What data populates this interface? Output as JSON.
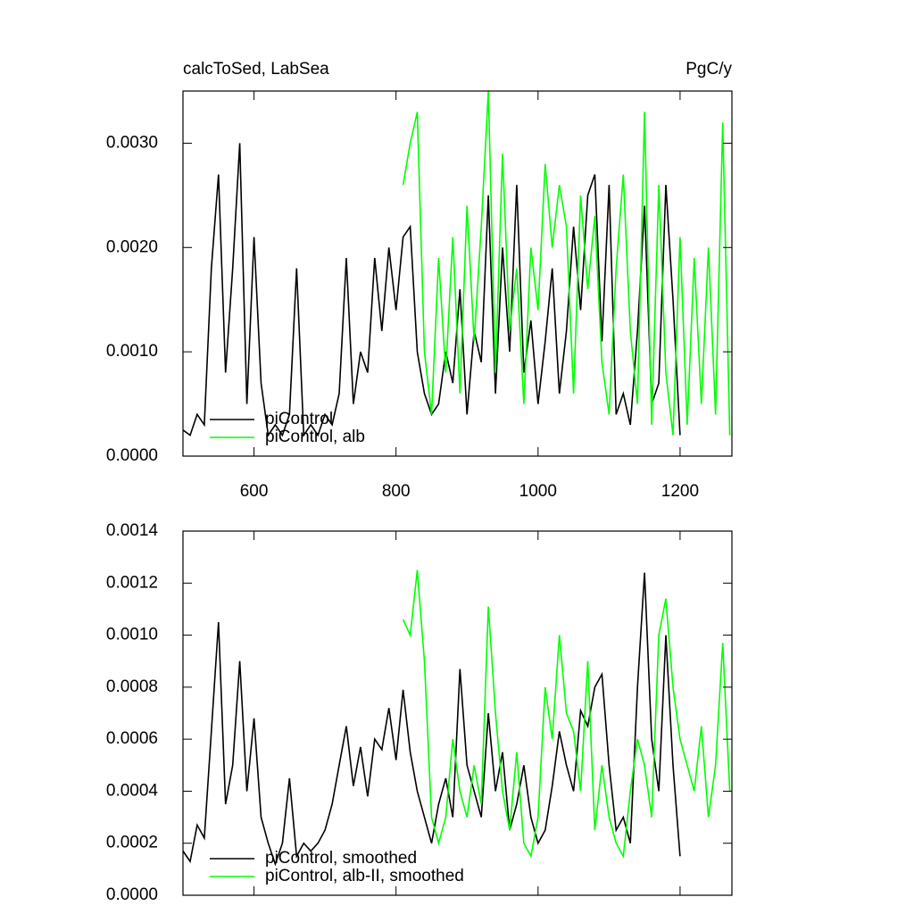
{
  "chart_data": [
    {
      "type": "line",
      "title": "calcToSed, LabSea",
      "subtitle": "PgC/y",
      "xlim": [
        500,
        1273
      ],
      "xticks": [
        600,
        800,
        1000,
        1200
      ],
      "ylim": [
        0,
        0.0035
      ],
      "yticks": [
        {
          "value": 0,
          "label": "0.0000"
        },
        {
          "value": 0.001,
          "label": "0.0010"
        },
        {
          "value": 0.002,
          "label": "0.0020"
        },
        {
          "value": 0.003,
          "label": "0.0030"
        }
      ],
      "series": [
        {
          "name": "piControl",
          "color": "#000000",
          "x": [
            500,
            510,
            520,
            530,
            540,
            550,
            560,
            570,
            580,
            590,
            600,
            610,
            620,
            630,
            640,
            650,
            660,
            670,
            680,
            690,
            700,
            710,
            720,
            730,
            740,
            750,
            760,
            770,
            780,
            790,
            800,
            810,
            820,
            830,
            840,
            850,
            860,
            870,
            880,
            890,
            900,
            910,
            920,
            930,
            940,
            950,
            960,
            970,
            980,
            990,
            1000,
            1010,
            1020,
            1030,
            1040,
            1050,
            1060,
            1070,
            1080,
            1090,
            1100,
            1110,
            1120,
            1130,
            1140,
            1150,
            1160,
            1170,
            1180,
            1190,
            1200
          ],
          "values": [
            0.00025,
            0.0002,
            0.0004,
            0.0003,
            0.0018,
            0.0027,
            0.0008,
            0.0018,
            0.003,
            0.0005,
            0.0021,
            0.0007,
            0.0002,
            0.0003,
            0.0002,
            0.0004,
            0.0018,
            0.0002,
            0.0003,
            0.0002,
            0.0004,
            0.0003,
            0.0006,
            0.0019,
            0.0005,
            0.001,
            0.0008,
            0.0019,
            0.0012,
            0.002,
            0.0014,
            0.0021,
            0.0022,
            0.001,
            0.0006,
            0.0004,
            0.0005,
            0.001,
            0.0007,
            0.0016,
            0.0004,
            0.0012,
            0.0009,
            0.0025,
            0.0006,
            0.002,
            0.001,
            0.0026,
            0.0008,
            0.0013,
            0.0005,
            0.0011,
            0.0018,
            0.0006,
            0.0012,
            0.0022,
            0.0014,
            0.0025,
            0.0027,
            0.0011,
            0.0026,
            0.0004,
            0.0006,
            0.0003,
            0.0012,
            0.0024,
            0.0005,
            0.0007,
            0.0026,
            0.0015,
            0.0002
          ]
        },
        {
          "name": "piControl, alb",
          "color": "#00ff00",
          "x": [
            810,
            820,
            830,
            840,
            850,
            860,
            870,
            880,
            890,
            900,
            910,
            920,
            930,
            940,
            950,
            960,
            970,
            980,
            990,
            1000,
            1010,
            1020,
            1030,
            1040,
            1050,
            1060,
            1070,
            1080,
            1090,
            1100,
            1110,
            1120,
            1130,
            1140,
            1150,
            1160,
            1170,
            1180,
            1190,
            1200,
            1210,
            1220,
            1230,
            1240,
            1250,
            1260,
            1270
          ],
          "values": [
            0.0026,
            0.003,
            0.0033,
            0.001,
            0.0004,
            0.0019,
            0.0008,
            0.0021,
            0.0006,
            0.0024,
            0.0011,
            0.0022,
            0.0035,
            0.0008,
            0.0029,
            0.0012,
            0.0018,
            0.0005,
            0.002,
            0.0014,
            0.0028,
            0.002,
            0.0026,
            0.0022,
            0.0006,
            0.0025,
            0.0016,
            0.0023,
            0.0009,
            0.0004,
            0.0018,
            0.0027,
            0.0012,
            0.0005,
            0.0033,
            0.0003,
            0.0026,
            0.0008,
            0.0002,
            0.0021,
            0.0003,
            0.0019,
            0.0005,
            0.002,
            0.0004,
            0.0032,
            0.0002
          ]
        }
      ]
    },
    {
      "type": "line",
      "xlim": [
        500,
        1273
      ],
      "xticks": [
        600,
        800,
        1000,
        1200
      ],
      "ylim": [
        0,
        0.0014
      ],
      "yticks": [
        {
          "value": 0,
          "label": "0.0000"
        },
        {
          "value": 0.0002,
          "label": "0.0002"
        },
        {
          "value": 0.0004,
          "label": "0.0004"
        },
        {
          "value": 0.0006,
          "label": "0.0006"
        },
        {
          "value": 0.0008,
          "label": "0.0008"
        },
        {
          "value": 0.001,
          "label": "0.0010"
        },
        {
          "value": 0.0012,
          "label": "0.0012"
        },
        {
          "value": 0.0014,
          "label": "0.0014"
        }
      ],
      "series": [
        {
          "name": "piControl, smoothed",
          "color": "#000000",
          "x": [
            500,
            510,
            520,
            530,
            540,
            550,
            560,
            570,
            580,
            590,
            600,
            610,
            620,
            630,
            640,
            650,
            660,
            670,
            680,
            690,
            700,
            710,
            720,
            730,
            740,
            750,
            760,
            770,
            780,
            790,
            800,
            810,
            820,
            830,
            840,
            850,
            860,
            870,
            880,
            890,
            900,
            910,
            920,
            930,
            940,
            950,
            960,
            970,
            980,
            990,
            1000,
            1010,
            1020,
            1030,
            1040,
            1050,
            1060,
            1070,
            1080,
            1090,
            1100,
            1110,
            1120,
            1130,
            1140,
            1150,
            1160,
            1170,
            1180,
            1190,
            1200
          ],
          "values": [
            0.00017,
            0.00013,
            0.00027,
            0.00022,
            0.00063,
            0.00105,
            0.00035,
            0.0005,
            0.0009,
            0.0004,
            0.00068,
            0.0003,
            0.0002,
            0.00012,
            0.0002,
            0.00045,
            0.00015,
            0.0002,
            0.00017,
            0.0002,
            0.00025,
            0.00035,
            0.0005,
            0.00065,
            0.00042,
            0.00057,
            0.00038,
            0.0006,
            0.00056,
            0.00072,
            0.00052,
            0.00079,
            0.00055,
            0.0004,
            0.0003,
            0.0002,
            0.00035,
            0.00045,
            0.0003,
            0.00087,
            0.0005,
            0.0004,
            0.0003,
            0.0007,
            0.0004,
            0.00055,
            0.00025,
            0.00035,
            0.0005,
            0.0003,
            0.0002,
            0.00025,
            0.00042,
            0.00063,
            0.0005,
            0.0004,
            0.00071,
            0.00065,
            0.0008,
            0.00085,
            0.0005,
            0.00025,
            0.0003,
            0.0002,
            0.0008,
            0.00124,
            0.0006,
            0.0004,
            0.001,
            0.0005,
            0.00015
          ]
        },
        {
          "name": "piControl, alb-II, smoothed",
          "color": "#00ff00",
          "x": [
            810,
            820,
            830,
            840,
            850,
            860,
            870,
            880,
            890,
            900,
            910,
            920,
            930,
            940,
            950,
            960,
            970,
            980,
            990,
            1000,
            1010,
            1020,
            1030,
            1040,
            1050,
            1060,
            1070,
            1080,
            1090,
            1100,
            1110,
            1120,
            1130,
            1140,
            1150,
            1160,
            1170,
            1180,
            1190,
            1200,
            1210,
            1220,
            1230,
            1240,
            1250,
            1260,
            1270
          ],
          "values": [
            0.00106,
            0.001,
            0.00125,
            0.0009,
            0.0003,
            0.0002,
            0.0003,
            0.0006,
            0.0004,
            0.0003,
            0.0005,
            0.00035,
            0.00111,
            0.0007,
            0.0004,
            0.00025,
            0.00055,
            0.0002,
            0.00015,
            0.0003,
            0.0008,
            0.0006,
            0.001,
            0.0007,
            0.00063,
            0.0004,
            0.0009,
            0.00025,
            0.0005,
            0.0003,
            0.0002,
            0.00015,
            0.0004,
            0.0006,
            0.0005,
            0.0003,
            0.001,
            0.00114,
            0.0008,
            0.0006,
            0.0005,
            0.0004,
            0.00065,
            0.0003,
            0.0005,
            0.00097,
            0.0004
          ]
        }
      ]
    }
  ]
}
